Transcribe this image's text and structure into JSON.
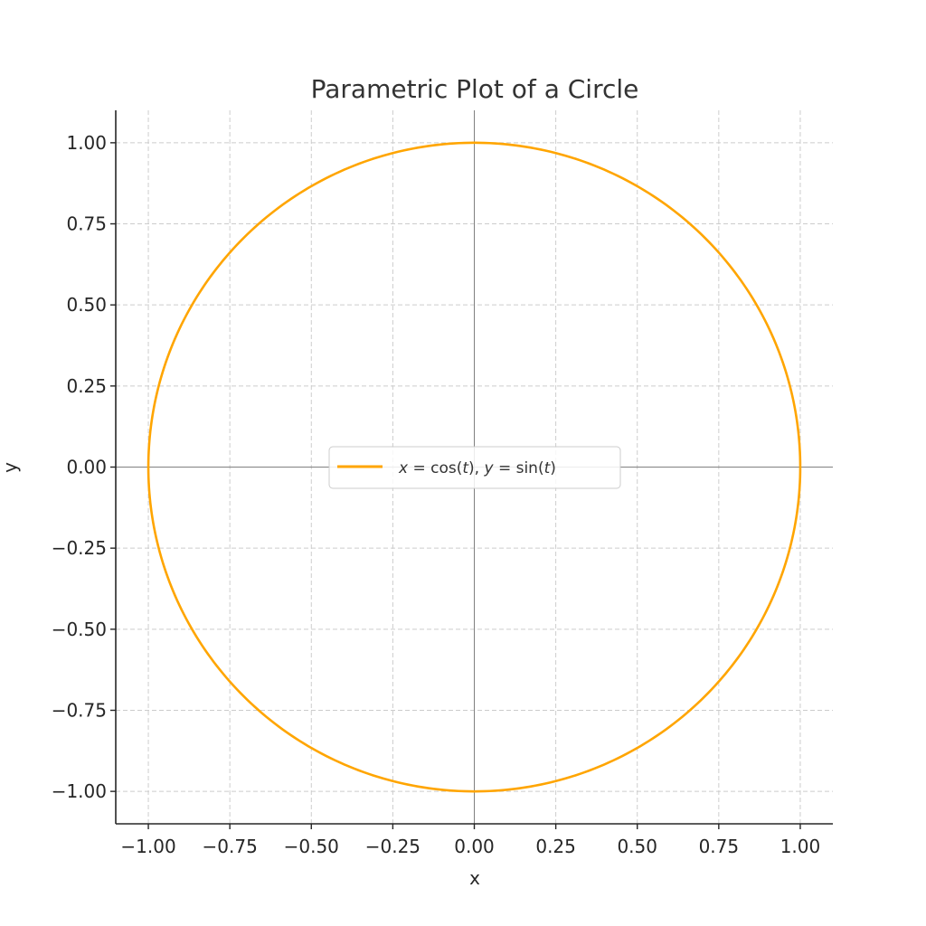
{
  "chart_data": {
    "type": "line",
    "title": "Parametric Plot of a Circle",
    "xlabel": "x",
    "ylabel": "y",
    "xlim": [
      -1.1,
      1.1
    ],
    "ylim": [
      -1.1,
      1.1
    ],
    "grid": true,
    "grid_style": "dashed",
    "legend_position": "center",
    "x_ticks": [
      -1.0,
      -0.75,
      -0.5,
      -0.25,
      0.0,
      0.25,
      0.5,
      0.75,
      1.0
    ],
    "x_tick_labels": [
      "−1.00",
      "−0.75",
      "−0.50",
      "−0.25",
      "0.00",
      "0.25",
      "0.50",
      "0.75",
      "1.00"
    ],
    "y_ticks": [
      1.0,
      0.75,
      0.5,
      0.25,
      0.0,
      -0.25,
      -0.5,
      -0.75,
      -1.0
    ],
    "y_tick_labels": [
      "1.00",
      "0.75",
      "0.50",
      "0.25",
      "0.00",
      "−0.25",
      "−0.50",
      "−0.75",
      "−1.00"
    ],
    "reference_lines": [
      {
        "orientation": "horizontal",
        "value": 0.0,
        "color": "#808080"
      },
      {
        "orientation": "vertical",
        "value": 0.0,
        "color": "#808080"
      }
    ],
    "series": [
      {
        "name": "x = cos(t),  y = sin(t)",
        "parametric": {
          "x": "cos(t)",
          "y": "sin(t)",
          "t_range": [
            0,
            6.2832
          ]
        },
        "color": "#FFA500",
        "x": [
          1.0,
          0.866,
          0.5,
          0.0,
          -0.5,
          -0.866,
          -1.0,
          -0.866,
          -0.5,
          0.0,
          0.5,
          0.866,
          1.0
        ],
        "y": [
          0.0,
          0.5,
          0.866,
          1.0,
          0.866,
          0.5,
          0.0,
          -0.5,
          -0.866,
          -1.0,
          -0.866,
          -0.5,
          0.0
        ]
      }
    ]
  },
  "legend": {
    "entries": [
      {
        "label_x": "x",
        "label_mid": " = cos(",
        "label_t1": "t",
        "label_mid2": "),  ",
        "label_y": "y",
        "label_mid3": " = sin(",
        "label_t2": "t",
        "label_end": ")"
      }
    ]
  }
}
